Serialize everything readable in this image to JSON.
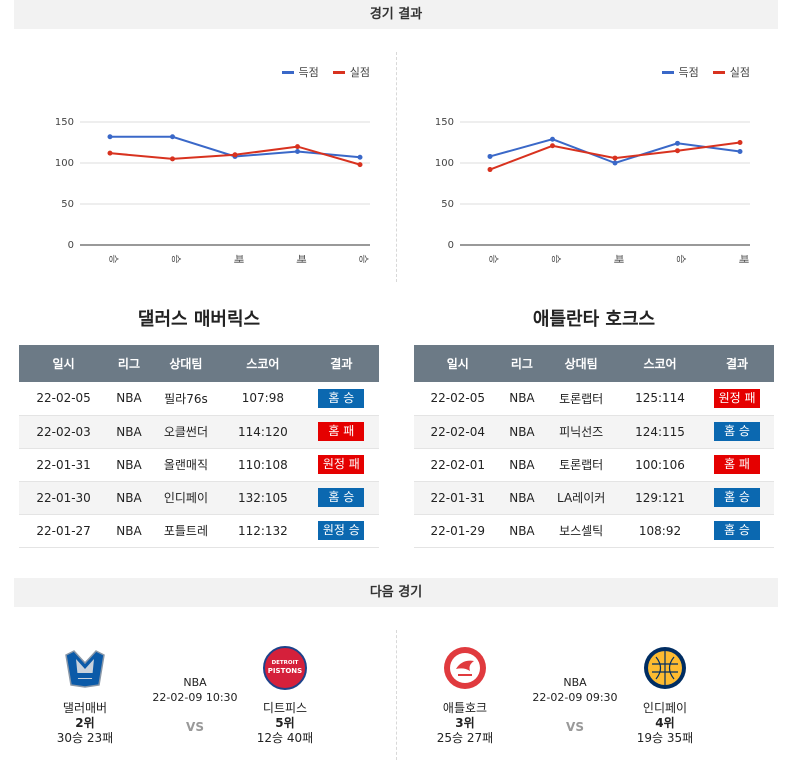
{
  "sections": {
    "results_title": "경기 결과",
    "next_title": "다음 경기"
  },
  "legend": {
    "scored": "득점",
    "conceded": "실점",
    "scored_color": "#3a68c8",
    "conceded_color": "#d8321f"
  },
  "chart_data": [
    {
      "type": "line",
      "categories": [
        "승",
        "승",
        "패",
        "패",
        "승"
      ],
      "series": [
        {
          "name": "득점",
          "values": [
            132,
            132,
            108,
            114,
            107
          ]
        },
        {
          "name": "실점",
          "values": [
            112,
            105,
            110,
            120,
            98
          ]
        }
      ],
      "ylim": [
        0,
        150
      ],
      "yticks": [
        0,
        50,
        100,
        150
      ],
      "legend": "top-right",
      "grid": true
    },
    {
      "type": "line",
      "categories": [
        "승",
        "승",
        "패",
        "승",
        "패"
      ],
      "series": [
        {
          "name": "득점",
          "values": [
            108,
            129,
            100,
            124,
            114
          ]
        },
        {
          "name": "실점",
          "values": [
            92,
            121,
            106,
            115,
            125
          ]
        }
      ],
      "ylim": [
        0,
        150
      ],
      "yticks": [
        0,
        50,
        100,
        150
      ],
      "legend": "top-right",
      "grid": true
    }
  ],
  "table_headers": [
    "일시",
    "리그",
    "상대팀",
    "스코어",
    "결과"
  ],
  "left_team": {
    "title": "댈러스 매버릭스",
    "rows": [
      {
        "date": "22-02-05",
        "league": "NBA",
        "opponent": "필라76s",
        "score": "107:98",
        "result": "홈 승",
        "win": true
      },
      {
        "date": "22-02-03",
        "league": "NBA",
        "opponent": "오클썬더",
        "score": "114:120",
        "result": "홈 패",
        "win": false
      },
      {
        "date": "22-01-31",
        "league": "NBA",
        "opponent": "올랜매직",
        "score": "110:108",
        "result": "원정 패",
        "win": false
      },
      {
        "date": "22-01-30",
        "league": "NBA",
        "opponent": "인디페이",
        "score": "132:105",
        "result": "홈 승",
        "win": true
      },
      {
        "date": "22-01-27",
        "league": "NBA",
        "opponent": "포틀트레",
        "score": "112:132",
        "result": "원정 승",
        "win": true
      }
    ]
  },
  "right_team": {
    "title": "애틀란타 호크스",
    "rows": [
      {
        "date": "22-02-05",
        "league": "NBA",
        "opponent": "토론랩터",
        "score": "125:114",
        "result": "원정 패",
        "win": false
      },
      {
        "date": "22-02-04",
        "league": "NBA",
        "opponent": "피닉선즈",
        "score": "124:115",
        "result": "홈 승",
        "win": true
      },
      {
        "date": "22-02-01",
        "league": "NBA",
        "opponent": "토론랩터",
        "score": "100:106",
        "result": "홈 패",
        "win": false
      },
      {
        "date": "22-01-31",
        "league": "NBA",
        "opponent": "LA레이커",
        "score": "129:121",
        "result": "홈 승",
        "win": true
      },
      {
        "date": "22-01-29",
        "league": "NBA",
        "opponent": "보스셀틱",
        "score": "108:92",
        "result": "홈 승",
        "win": true
      }
    ]
  },
  "next_games": [
    {
      "league": "NBA",
      "datetime": "22-02-09 10:30",
      "vs": "VS",
      "home": {
        "name": "댈러매버",
        "rank": "2위",
        "record": "30승 23패",
        "logo": "mavericks-logo"
      },
      "away": {
        "name": "디트피스",
        "rank": "5위",
        "record": "12승 40패",
        "logo": "pistons-logo",
        "logo_text": "DETROIT PISTONS"
      }
    },
    {
      "league": "NBA",
      "datetime": "22-02-09 09:30",
      "vs": "VS",
      "home": {
        "name": "애틀호크",
        "rank": "3위",
        "record": "25승 27패",
        "logo": "hawks-logo",
        "logo_text": "ATLANTA HAWKS"
      },
      "away": {
        "name": "인디페이",
        "rank": "4위",
        "record": "19승 35패",
        "logo": "pacers-logo",
        "logo_text": "INDIANA PACERS"
      }
    }
  ]
}
